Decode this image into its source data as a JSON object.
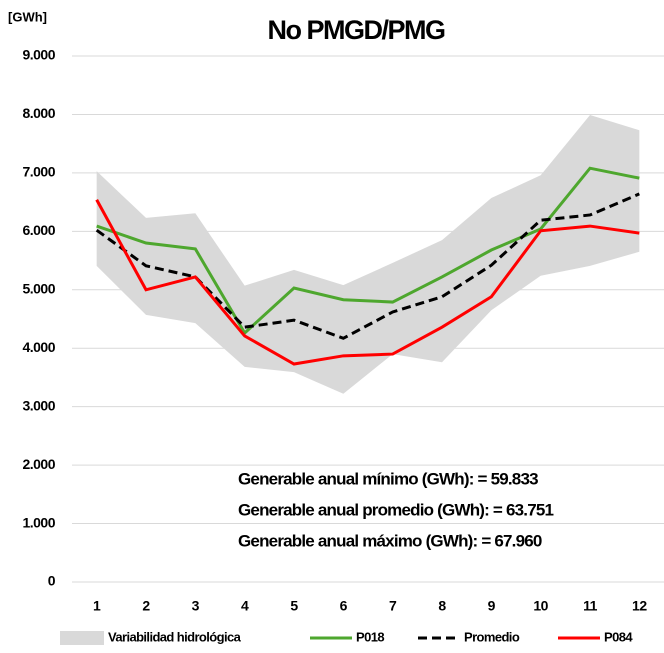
{
  "chart_data": {
    "type": "line",
    "title": "No PMGD/PMG",
    "y_label": "[GWh]",
    "categories": [
      "1",
      "2",
      "3",
      "4",
      "5",
      "6",
      "7",
      "8",
      "9",
      "10",
      "11",
      "12"
    ],
    "ylim": [
      0,
      9000
    ],
    "yticks": [
      {
        "value": 0,
        "label": "0"
      },
      {
        "value": 1000,
        "label": "1.000"
      },
      {
        "value": 2000,
        "label": "2.000"
      },
      {
        "value": 3000,
        "label": "3.000"
      },
      {
        "value": 4000,
        "label": "4.000"
      },
      {
        "value": 5000,
        "label": "5.000"
      },
      {
        "value": 6000,
        "label": "6.000"
      },
      {
        "value": 7000,
        "label": "7.000"
      },
      {
        "value": 8000,
        "label": "8.000"
      },
      {
        "value": 9000,
        "label": "9.000"
      }
    ],
    "grid": true,
    "band": {
      "name": "Variabilidad hidrológica",
      "color": "#d9d9d9",
      "upper": [
        7030,
        6230,
        6310,
        5070,
        5340,
        5080,
        5460,
        5850,
        6570,
        6960,
        7990,
        7730
      ],
      "lower": [
        5410,
        4570,
        4430,
        3680,
        3590,
        3220,
        3900,
        3760,
        4650,
        5240,
        5410,
        5650
      ]
    },
    "series": [
      {
        "name": "P018",
        "color": "#4ea72e",
        "dash": false,
        "values": [
          6090,
          5800,
          5700,
          4260,
          5030,
          4830,
          4790,
          5220,
          5680,
          6040,
          7080,
          6910
        ]
      },
      {
        "name": "Promedio",
        "color": "#000000",
        "dash": true,
        "values": [
          6020,
          5410,
          5220,
          4360,
          4480,
          4170,
          4620,
          4880,
          5420,
          6190,
          6280,
          6640
        ]
      },
      {
        "name": "P084",
        "color": "#ff0000",
        "dash": false,
        "values": [
          6540,
          5000,
          5220,
          4210,
          3730,
          3870,
          3900,
          4360,
          4880,
          6010,
          6090,
          5970
        ]
      }
    ],
    "annotations": [
      "Generable anual mínimo (GWh): = 59.833",
      "Generable anual promedio (GWh): = 63.751",
      "Generable anual máximo (GWh): = 67.960"
    ],
    "legend": "bottom"
  }
}
